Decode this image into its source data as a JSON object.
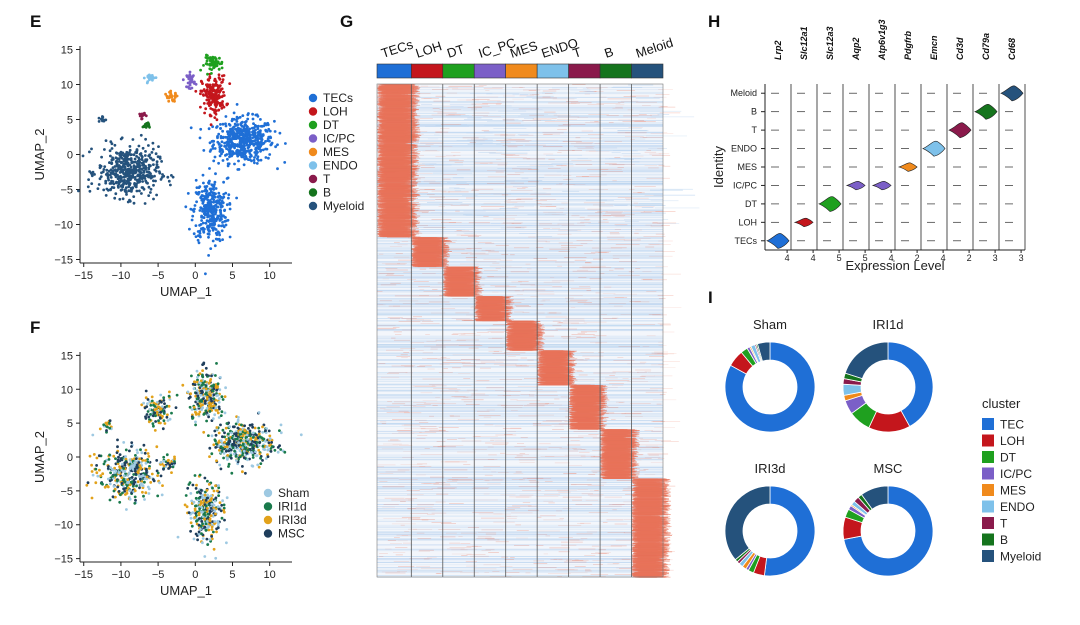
{
  "colors": {
    "TECs": "#1f6fd6",
    "LOH": "#c4161c",
    "DT": "#1fa01f",
    "IC_PC": "#7b5fc7",
    "MES": "#f08a1c",
    "ENDO": "#7ec1ea",
    "T": "#8a1a4b",
    "B": "#15741d",
    "Myeloid": "#25527c",
    "Sham": "#9ec9e2",
    "IRI1d": "#1a7a4c",
    "IRI3d": "#e2a21b",
    "MSC": "#1f3e5c",
    "heat_high": "#e8735a",
    "heat_low": "#bcd5f0"
  },
  "chart_data": [
    {
      "panel": "E",
      "type": "scatter",
      "xlabel": "UMAP_1",
      "ylabel": "UMAP_2",
      "xticks": [
        -15,
        -10,
        -5,
        0,
        5,
        10
      ],
      "yticks": [
        15,
        10,
        5,
        0,
        -5,
        -10,
        -15
      ],
      "xlim": [
        -15.5,
        13
      ],
      "ylim": [
        -15.5,
        15.5
      ],
      "legend": [
        "TECs",
        "LOH",
        "DT",
        "IC/PC",
        "MES",
        "ENDO",
        "T",
        "B",
        "Myeloid"
      ],
      "legend_keys": [
        "TECs",
        "LOH",
        "DT",
        "IC_PC",
        "MES",
        "ENDO",
        "T",
        "B",
        "Myeloid"
      ],
      "clusters": [
        {
          "name": "TECs",
          "cx": 6.5,
          "cy": 2,
          "rx": 4.5,
          "ry": 3.5,
          "n": 500
        },
        {
          "name": "TECs",
          "cx": 2,
          "cy": -8,
          "rx": 2.5,
          "ry": 5,
          "n": 320
        },
        {
          "name": "LOH",
          "cx": 2.5,
          "cy": 8.5,
          "rx": 1.8,
          "ry": 3,
          "n": 190
        },
        {
          "name": "DT",
          "cx": 2.5,
          "cy": 13,
          "rx": 1.4,
          "ry": 1.2,
          "n": 60
        },
        {
          "name": "IC_PC",
          "cx": -0.6,
          "cy": 10.6,
          "rx": 0.6,
          "ry": 1.2,
          "n": 35
        },
        {
          "name": "MES",
          "cx": -3.2,
          "cy": 8.2,
          "rx": 1,
          "ry": 0.8,
          "n": 25
        },
        {
          "name": "ENDO",
          "cx": -6,
          "cy": 11,
          "rx": 0.8,
          "ry": 0.6,
          "n": 25
        },
        {
          "name": "T",
          "cx": -7.2,
          "cy": 5.6,
          "rx": 0.5,
          "ry": 0.5,
          "n": 15
        },
        {
          "name": "B",
          "cx": -6.6,
          "cy": 4.2,
          "rx": 0.5,
          "ry": 0.5,
          "n": 15
        },
        {
          "name": "Myeloid",
          "cx": -9,
          "cy": -2.5,
          "rx": 4.5,
          "ry": 4,
          "n": 460
        },
        {
          "name": "Myeloid",
          "cx": -12.5,
          "cy": 5,
          "rx": 0.6,
          "ry": 0.6,
          "n": 10
        }
      ]
    },
    {
      "panel": "F",
      "type": "scatter",
      "xlabel": "UMAP_1",
      "ylabel": "UMAP_2",
      "xticks": [
        -15,
        -10,
        -5,
        0,
        5,
        10
      ],
      "yticks": [
        15,
        10,
        5,
        0,
        -5,
        -10,
        -15
      ],
      "xlim": [
        -15.5,
        13
      ],
      "ylim": [
        -15.5,
        15.5
      ],
      "legend": [
        "Sham",
        "IRI1d",
        "IRI3d",
        "MSC"
      ],
      "legend_keys": [
        "Sham",
        "IRI1d",
        "IRI3d",
        "MSC"
      ],
      "groups": [
        "Sham",
        "IRI1d",
        "IRI3d",
        "MSC"
      ],
      "clusters": [
        {
          "cx": 6.5,
          "cy": 2,
          "rx": 4.5,
          "ry": 3.5,
          "n": 420
        },
        {
          "cx": 1.5,
          "cy": -8,
          "rx": 2.5,
          "ry": 5,
          "n": 300
        },
        {
          "cx": 1.5,
          "cy": 9,
          "rx": 2.4,
          "ry": 4,
          "n": 260
        },
        {
          "cx": -5,
          "cy": 7,
          "rx": 2.5,
          "ry": 2.5,
          "n": 110
        },
        {
          "cx": -9,
          "cy": -2.5,
          "rx": 4.5,
          "ry": 4,
          "n": 380
        },
        {
          "cx": -12,
          "cy": 4.5,
          "rx": 0.8,
          "ry": 1,
          "n": 18
        },
        {
          "cx": -3.5,
          "cy": -1,
          "rx": 1.2,
          "ry": 1.2,
          "n": 30
        }
      ]
    },
    {
      "panel": "G",
      "type": "heatmap",
      "columns": [
        "TECs",
        "LOH",
        "DT",
        "IC_PC",
        "MES",
        "ENDO",
        "T",
        "B",
        "Meloid"
      ],
      "column_keys": [
        "TECs",
        "LOH",
        "DT",
        "IC_PC",
        "MES",
        "ENDO",
        "T",
        "B",
        "Myeloid"
      ],
      "column_widths": [
        0.12,
        0.11,
        0.11,
        0.11,
        0.11,
        0.11,
        0.11,
        0.11,
        0.11
      ],
      "row_blocks": [
        0.31,
        0.06,
        0.06,
        0.05,
        0.06,
        0.07,
        0.09,
        0.1,
        0.1,
        0.1
      ]
    },
    {
      "panel": "H",
      "type": "violin",
      "xlabel": "Expression Level",
      "ylabel": "Identity",
      "genes": [
        "Lrp2",
        "Slc12a1",
        "Slc12a3",
        "Aqp2",
        "Atp6v1g3",
        "Pdgfrb",
        "Emcn",
        "Cd3d",
        "Cd79a",
        "Cd68"
      ],
      "identities": [
        "TECs",
        "LOH",
        "DT",
        "IC/PC",
        "MES",
        "ENDO",
        "T",
        "B",
        "Meloid"
      ],
      "identity_keys": [
        "TECs",
        "LOH",
        "DT",
        "IC_PC",
        "MES",
        "ENDO",
        "T",
        "B",
        "Myeloid"
      ],
      "tick_labels": [
        "4",
        "4",
        "5",
        "5",
        "4",
        "2",
        "4",
        "2",
        "3",
        "3"
      ],
      "violins": [
        {
          "gene": "Lrp2",
          "identity": "TECs",
          "key": "TECs",
          "size": "medium"
        },
        {
          "gene": "Slc12a1",
          "identity": "LOH",
          "key": "LOH",
          "size": "small"
        },
        {
          "gene": "Slc12a3",
          "identity": "DT",
          "key": "DT",
          "size": "medium"
        },
        {
          "gene": "Aqp2",
          "identity": "IC/PC",
          "key": "IC_PC",
          "size": "small"
        },
        {
          "gene": "Atp6v1g3",
          "identity": "IC/PC",
          "key": "IC_PC",
          "size": "small"
        },
        {
          "gene": "Pdgfrb",
          "identity": "MES",
          "key": "MES",
          "size": "small"
        },
        {
          "gene": "Emcn",
          "identity": "ENDO",
          "key": "ENDO",
          "size": "medium"
        },
        {
          "gene": "Cd3d",
          "identity": "T",
          "key": "T",
          "size": "medium"
        },
        {
          "gene": "Cd79a",
          "identity": "B",
          "key": "B",
          "size": "medium"
        },
        {
          "gene": "Cd68",
          "identity": "Meloid",
          "key": "Myeloid",
          "size": "medium"
        }
      ]
    },
    {
      "panel": "I",
      "type": "pie",
      "donut": true,
      "legend_title": "cluster",
      "categories": [
        "TEC",
        "LOH",
        "DT",
        "IC/PC",
        "MES",
        "ENDO",
        "T",
        "B",
        "Myeloid"
      ],
      "category_keys": [
        "TECs",
        "LOH",
        "DT",
        "IC_PC",
        "MES",
        "ENDO",
        "T",
        "B",
        "Myeloid"
      ],
      "series": [
        {
          "name": "Sham",
          "values": [
            83,
            6,
            2.5,
            1,
            0.5,
            1.5,
            0.5,
            0.5,
            4.5
          ]
        },
        {
          "name": "IRI1d",
          "values": [
            42,
            15,
            8,
            5,
            2,
            4,
            2,
            2,
            20
          ]
        },
        {
          "name": "IRI3d",
          "values": [
            52,
            4,
            2,
            1,
            1.5,
            1.5,
            1,
            1,
            36
          ]
        },
        {
          "name": "MSC",
          "values": [
            72,
            8,
            3,
            1.5,
            0.5,
            1.5,
            2,
            1.5,
            10
          ]
        }
      ]
    }
  ]
}
